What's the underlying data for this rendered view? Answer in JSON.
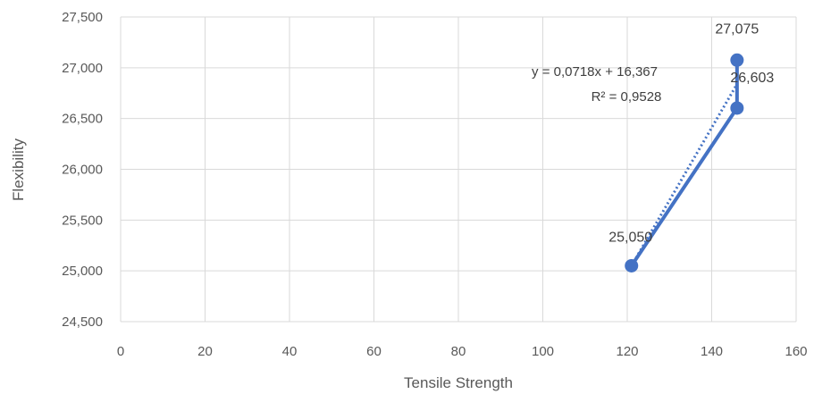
{
  "chart_data": {
    "type": "scatter",
    "title": "",
    "xlabel": "Tensile Strength",
    "ylabel": "Flexibility",
    "xlim": [
      0,
      160
    ],
    "ylim": [
      24500,
      27500
    ],
    "x_ticks": [
      0,
      20,
      40,
      60,
      80,
      100,
      120,
      140,
      160
    ],
    "x_tick_labels": [
      "0",
      "20",
      "40",
      "60",
      "80",
      "100",
      "120",
      "140",
      "160"
    ],
    "y_ticks": [
      24500,
      25000,
      25500,
      26000,
      26500,
      27000,
      27500
    ],
    "y_tick_labels": [
      "24,500",
      "25,000",
      "25,500",
      "26,000",
      "26,500",
      "27,000",
      "27,500"
    ],
    "grid": true,
    "series": [
      {
        "x": [
          121,
          146,
          146
        ],
        "y": [
          25050,
          26603,
          27075
        ],
        "labels": [
          "25,050",
          "26,603",
          "27,075"
        ],
        "color": "#4472C4",
        "connected": true
      }
    ],
    "trendline": {
      "type": "linear",
      "style": "dotted",
      "color": "#4472C4",
      "equation": "y = 0,0718x + 16,367",
      "r_squared": "R² = 0,9528"
    }
  }
}
